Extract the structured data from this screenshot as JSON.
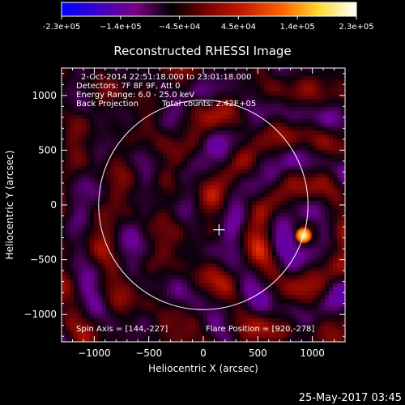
{
  "colorbar": {
    "tick_labels": [
      "-2.3e+05",
      "−1.4e+05",
      "−4.5e+04",
      "4.5e+04",
      "1.4e+05",
      "2.3e+05"
    ],
    "min": -230000,
    "max": 230000,
    "colors": [
      "#0000ff",
      "#3a00c8",
      "#7a0080",
      "#000000",
      "#800000",
      "#c81e00",
      "#ff6400",
      "#ffdc32",
      "#ffffff"
    ]
  },
  "plot": {
    "title": "Reconstructed RHESSI Image",
    "xlabel": "Heliocentric X (arcsec)",
    "ylabel": "Heliocentric Y (arcsec)"
  },
  "annotations": {
    "time_range": "2-Oct-2014 22:51:18.000 to 23:01:18.000",
    "detectors": "Detectors: 7F 8F 9F, Att 0",
    "energy_range": "Energy Range: 6.0 - 25.0 keV",
    "method": "Back Projection",
    "total_counts": "Total counts: 2.42E+05",
    "spin_axis": "Spin Axis = [144,-227]",
    "flare_position": "Flare Position = [920,-278]"
  },
  "footer": {
    "date": "25-May-2017 03:45"
  },
  "chart_data": {
    "type": "heatmap",
    "title": "Reconstructed RHESSI Image",
    "xlabel": "Heliocentric X (arcsec)",
    "ylabel": "Heliocentric Y (arcsec)",
    "xlim": [
      -1300,
      1300
    ],
    "ylim": [
      -1250,
      1250
    ],
    "x_ticks": [
      -1000,
      -500,
      0,
      500,
      1000
    ],
    "y_ticks": [
      -1000,
      -500,
      0,
      500,
      1000
    ],
    "value_range": [
      -230000,
      230000
    ],
    "solar_disk": {
      "center": [
        0,
        0
      ],
      "radius": 960
    },
    "spin_axis": [
      144,
      -227
    ],
    "flare_position": [
      920,
      -278
    ],
    "bright_source": {
      "x": 920,
      "y": -278
    }
  }
}
